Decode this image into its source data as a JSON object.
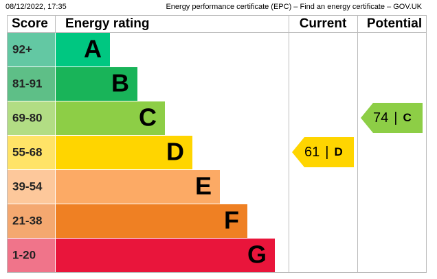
{
  "header": {
    "timestamp": "08/12/2022, 17:35",
    "title": "Energy performance certificate (EPC) – Find an energy certificate – GOV.UK"
  },
  "chart_data": {
    "type": "epc",
    "columns": [
      "Score",
      "Energy rating",
      "Current",
      "Potential"
    ],
    "bands": [
      {
        "score": "92+",
        "rating": "A",
        "color": "#00c781",
        "score_color": "#63c8a3"
      },
      {
        "score": "81-91",
        "rating": "B",
        "color": "#19b459",
        "score_color": "#5ebf87"
      },
      {
        "score": "69-80",
        "rating": "C",
        "color": "#8dce46",
        "score_color": "#b2dd84"
      },
      {
        "score": "55-68",
        "rating": "D",
        "color": "#ffd500",
        "score_color": "#ffe367"
      },
      {
        "score": "39-54",
        "rating": "E",
        "color": "#fcaa65",
        "score_color": "#fdc89b"
      },
      {
        "score": "21-38",
        "rating": "F",
        "color": "#ef8023",
        "score_color": "#f4a870"
      },
      {
        "score": "1-20",
        "rating": "G",
        "color": "#e9153b",
        "score_color": "#f0748a"
      }
    ],
    "current": {
      "value": 61,
      "separator": "|",
      "rating": "D"
    },
    "potential": {
      "value": 74,
      "separator": "|",
      "rating": "C"
    }
  }
}
